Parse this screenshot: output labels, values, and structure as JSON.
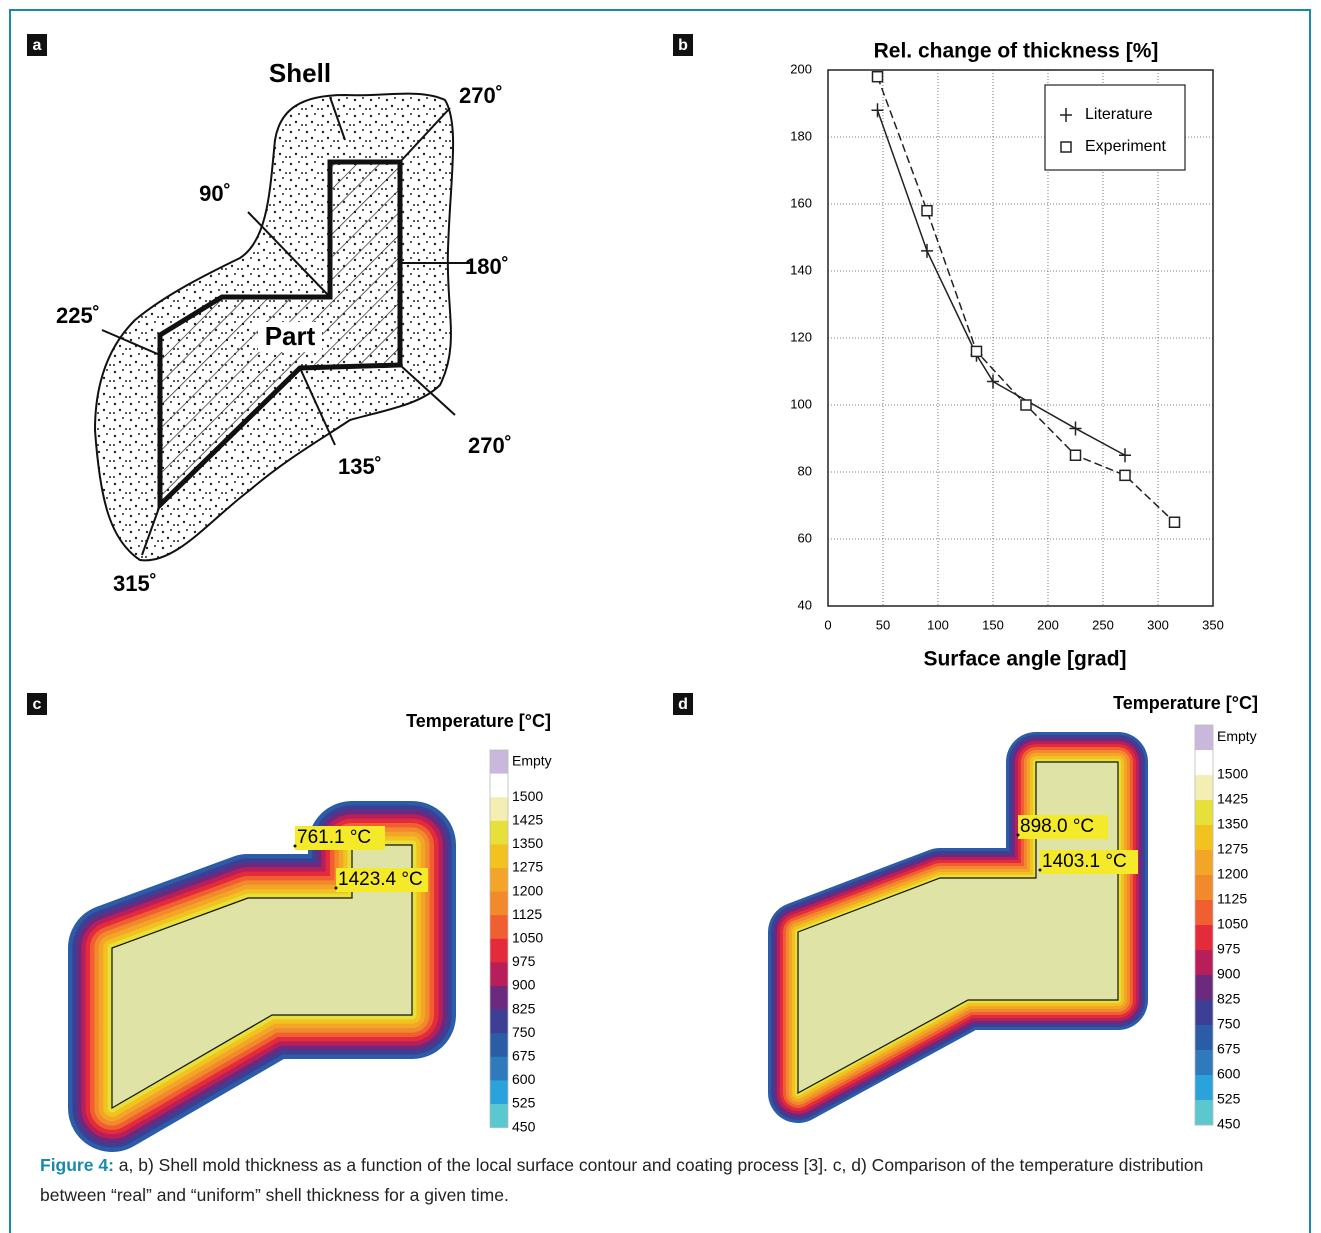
{
  "panel_labels": [
    "a",
    "b",
    "c",
    "d"
  ],
  "diagram": {
    "shell": "Shell",
    "part": "Part",
    "angles": [
      "270˚",
      "90˚",
      "180˚",
      "225˚",
      "270˚",
      "135˚",
      "315˚"
    ]
  },
  "chart_data": {
    "type": "line",
    "title": "Rel. change of thickness [%]",
    "x_label": "Surface angle [grad]",
    "xlim": [
      0,
      350
    ],
    "ylim": [
      40,
      200
    ],
    "xticks": [
      0,
      50,
      100,
      150,
      200,
      250,
      300,
      350
    ],
    "yticks": [
      40,
      60,
      80,
      100,
      120,
      140,
      160,
      180,
      200
    ],
    "grid": true,
    "legend": "upper right",
    "series": [
      {
        "name": "Literature",
        "marker": "plus",
        "color": "#222222",
        "x": [
          45,
          90,
          135,
          150,
          225,
          270
        ],
        "values": [
          188,
          146,
          115,
          107,
          93,
          85
        ]
      },
      {
        "name": "Experiment",
        "marker": "square",
        "color": "#222222",
        "x": [
          45,
          90,
          135,
          180,
          225,
          270,
          315
        ],
        "values": [
          198,
          158,
          116,
          100,
          85,
          79,
          65
        ]
      }
    ]
  },
  "simulations": [
    {
      "title": "Temperature [°C]",
      "annotations": [
        "761.1 °C",
        "1423.4 °C"
      ]
    },
    {
      "title": "Temperature [°C]",
      "annotations": [
        "898.0 °C",
        "1403.1 °C"
      ]
    }
  ],
  "colorbar": {
    "labels": [
      "Empty",
      "1500",
      "1425",
      "1350",
      "1275",
      "1200",
      "1125",
      "1050",
      "975",
      "900",
      "825",
      "750",
      "675",
      "600",
      "525",
      "450"
    ],
    "colors": [
      "#c9b8dc",
      "#ffffff",
      "#f3efb2",
      "#e8e03a",
      "#f2c21f",
      "#f3a52a",
      "#f28a2c",
      "#ef5f31",
      "#e42b3c",
      "#b81f5a",
      "#6b2a7e",
      "#3d3f95",
      "#2b5ca8",
      "#2f79bd",
      "#2aa3dc",
      "#5bc7cf"
    ]
  },
  "caption": {
    "label": "Figure 4:",
    "text": "a, b) Shell mold thickness as a function of the local surface contour and coating process [3]. c, d) Comparison of the temperature distribution between “real” and “uniform” shell thickness for a given time."
  }
}
